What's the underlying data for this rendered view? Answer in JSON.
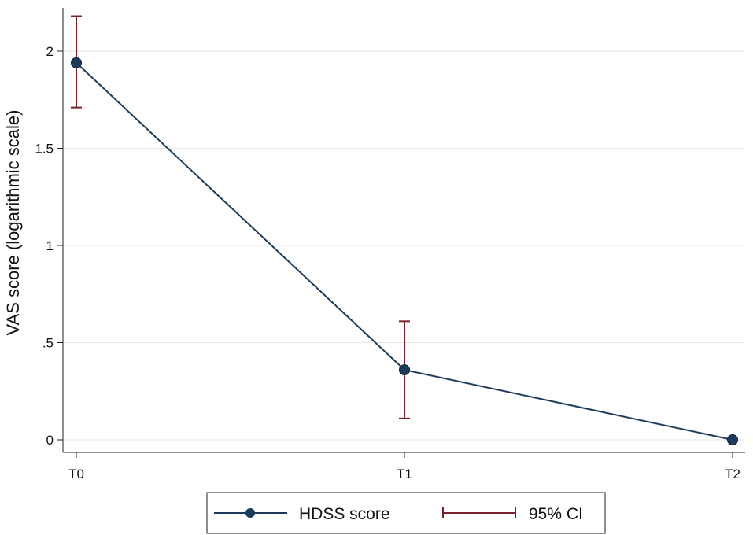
{
  "chart_data": {
    "type": "line",
    "title": "",
    "xlabel": "",
    "ylabel": "VAS score (logarithmic scale)",
    "categories": [
      "T0",
      "T1",
      "T2"
    ],
    "series": [
      {
        "name": "HDSS score",
        "values": [
          1.94,
          0.36,
          0.0
        ],
        "color": "#1b3a5c"
      }
    ],
    "error_bars": {
      "name": "95% CI",
      "lower": [
        1.71,
        0.11,
        null
      ],
      "upper": [
        2.18,
        0.61,
        null
      ],
      "color": "#7a1f2b"
    },
    "ylim": [
      0,
      2.2
    ],
    "yticks": [
      0,
      0.5,
      1,
      1.5,
      2
    ],
    "ytick_labels": [
      "0",
      ".5",
      "1",
      "1.5",
      "2"
    ],
    "grid": true,
    "legend_position": "bottom"
  }
}
